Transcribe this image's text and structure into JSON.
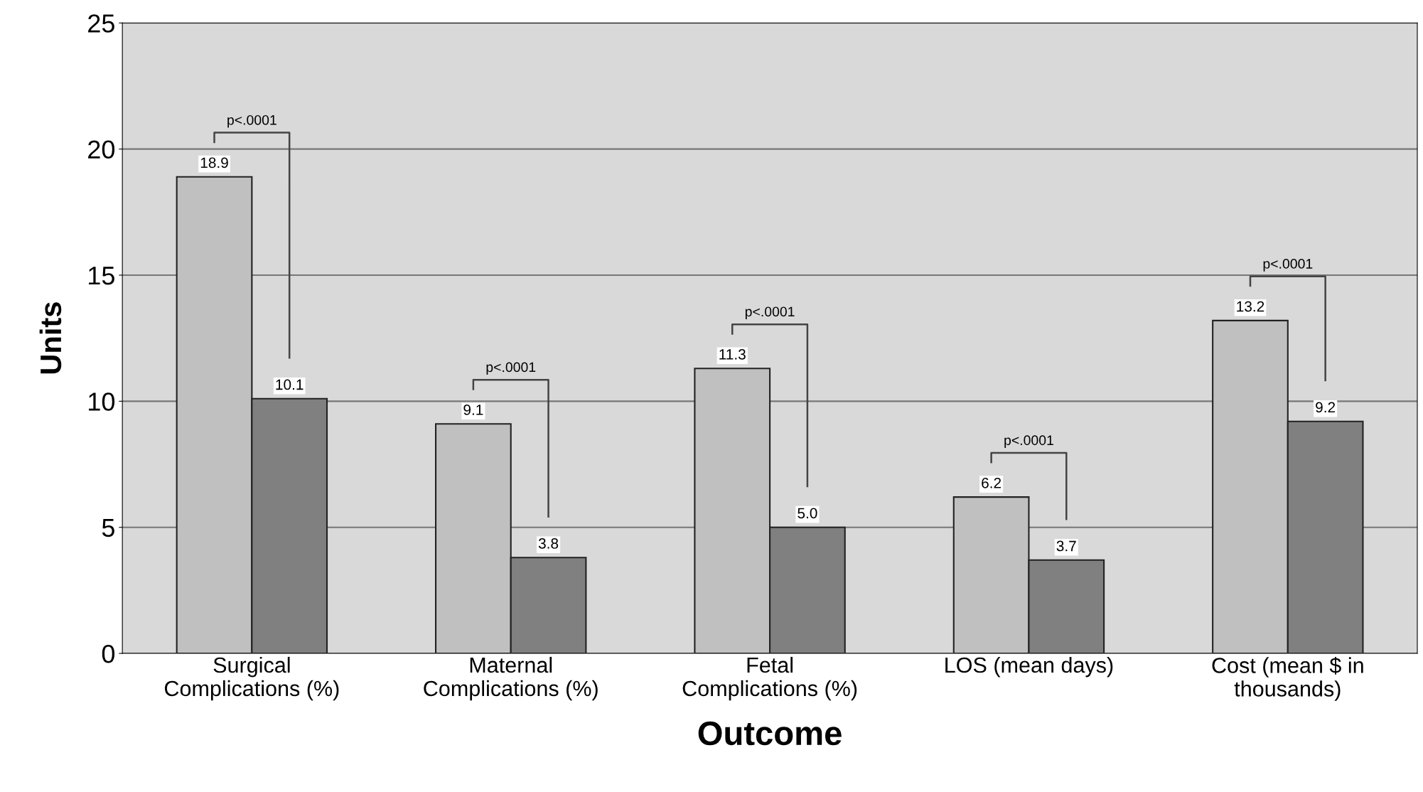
{
  "chart_data": {
    "type": "bar",
    "categories": [
      "Surgical\nComplications (%)",
      "Maternal\nComplications (%)",
      "Fetal\nComplications (%)",
      "LOS (mean days)",
      "Cost (mean $ in\nthousands)"
    ],
    "series": [
      {
        "color": "#c0c0c0",
        "values": [
          18.9,
          9.1,
          11.3,
          6.2,
          13.2
        ],
        "value_labels": [
          "18.9",
          "9.1",
          "11.3",
          "6.2",
          "13.2"
        ]
      },
      {
        "color": "#808080",
        "values": [
          10.1,
          3.8,
          5,
          3.7,
          9.2
        ],
        "value_labels": [
          "10.1",
          "3.8",
          "5.0",
          "3.7",
          "9.2"
        ]
      }
    ],
    "xlabel": "Outcome",
    "ylabel": "Units",
    "ylim": [
      0,
      25
    ],
    "yticks": [
      0,
      5,
      10,
      15,
      20,
      25
    ],
    "grid": "y",
    "legend": false,
    "annotations": [
      "p<.0001",
      "p<.0001",
      "p<.0001",
      "p<.0001",
      "p<.0001"
    ]
  }
}
